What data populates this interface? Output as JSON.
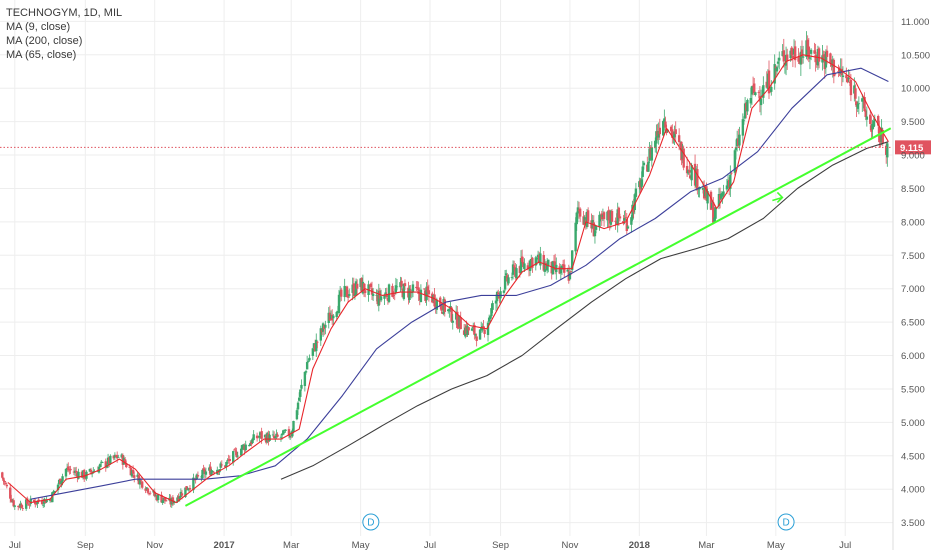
{
  "legend": {
    "symbol_line": "TECHNOGYM, 1D, MIL",
    "ma1": "MA (9, close)",
    "ma2": "MA (200, close)",
    "ma3": "MA (65, close)"
  },
  "current_price": "9.115",
  "event_marker": "D",
  "chart_data": {
    "type": "candlestick",
    "title": "TECHNOGYM, 1D, MIL",
    "x_ticks": [
      "Jul",
      "Sep",
      "Nov",
      "2017",
      "Mar",
      "May",
      "Jul",
      "Sep",
      "Nov",
      "2018",
      "Mar",
      "May",
      "Jul"
    ],
    "y_ticks": [
      "3.500",
      "4.000",
      "4.500",
      "5.000",
      "5.500",
      "6.000",
      "6.500",
      "7.000",
      "7.500",
      "8.000",
      "8.500",
      "9.000",
      "9.500",
      "10.000",
      "10.500",
      "11.000"
    ],
    "ylim": [
      3.3,
      11.2
    ],
    "x_range": [
      "2016-06-18",
      "2018-08-12"
    ],
    "grid": true,
    "last_price": 9.115,
    "close_path": [
      [
        "2016-06-18",
        4.25
      ],
      [
        "2016-07-01",
        3.75
      ],
      [
        "2016-07-15",
        3.8
      ],
      [
        "2016-08-01",
        3.85
      ],
      [
        "2016-08-15",
        4.3
      ],
      [
        "2016-09-01",
        4.2
      ],
      [
        "2016-09-15",
        4.35
      ],
      [
        "2016-10-01",
        4.5
      ],
      [
        "2016-10-15",
        4.2
      ],
      [
        "2016-11-01",
        3.9
      ],
      [
        "2016-11-15",
        3.8
      ],
      [
        "2016-12-01",
        4.05
      ],
      [
        "2016-12-15",
        4.25
      ],
      [
        "2017-01-01",
        4.35
      ],
      [
        "2017-01-15",
        4.6
      ],
      [
        "2017-02-01",
        4.8
      ],
      [
        "2017-02-15",
        4.75
      ],
      [
        "2017-03-01",
        4.85
      ],
      [
        "2017-03-15",
        5.9
      ],
      [
        "2017-04-01",
        6.5
      ],
      [
        "2017-04-15",
        6.9
      ],
      [
        "2017-05-01",
        7.05
      ],
      [
        "2017-05-15",
        6.85
      ],
      [
        "2017-06-01",
        7.0
      ],
      [
        "2017-06-15",
        6.95
      ],
      [
        "2017-07-01",
        6.9
      ],
      [
        "2017-07-15",
        6.7
      ],
      [
        "2017-08-01",
        6.4
      ],
      [
        "2017-08-15",
        6.3
      ],
      [
        "2017-09-01",
        7.0
      ],
      [
        "2017-09-15",
        7.3
      ],
      [
        "2017-10-01",
        7.45
      ],
      [
        "2017-10-15",
        7.3
      ],
      [
        "2017-11-01",
        7.2
      ],
      [
        "2017-11-08",
        8.2
      ],
      [
        "2017-11-22",
        7.9
      ],
      [
        "2017-12-08",
        8.1
      ],
      [
        "2017-12-22",
        8.0
      ],
      [
        "2018-01-08",
        8.9
      ],
      [
        "2018-01-22",
        9.6
      ],
      [
        "2018-02-08",
        9.0
      ],
      [
        "2018-02-22",
        8.6
      ],
      [
        "2018-03-08",
        8.1
      ],
      [
        "2018-03-22",
        8.7
      ],
      [
        "2018-04-08",
        9.9
      ],
      [
        "2018-04-22",
        10.0
      ],
      [
        "2018-05-08",
        10.5
      ],
      [
        "2018-05-22",
        10.55
      ],
      [
        "2018-06-08",
        10.5
      ],
      [
        "2018-06-22",
        10.3
      ],
      [
        "2018-07-08",
        10.0
      ],
      [
        "2018-07-22",
        9.5
      ],
      [
        "2018-08-08",
        9.115
      ]
    ],
    "ma_9_path": [
      [
        "2016-06-25",
        4.1
      ],
      [
        "2016-07-15",
        3.8
      ],
      [
        "2016-08-01",
        3.85
      ],
      [
        "2016-08-15",
        4.15
      ],
      [
        "2016-09-01",
        4.2
      ],
      [
        "2016-09-15",
        4.3
      ],
      [
        "2016-10-01",
        4.45
      ],
      [
        "2016-10-15",
        4.3
      ],
      [
        "2016-11-01",
        3.95
      ],
      [
        "2016-11-20",
        3.8
      ],
      [
        "2016-12-05",
        4.0
      ],
      [
        "2016-12-20",
        4.2
      ],
      [
        "2017-01-05",
        4.35
      ],
      [
        "2017-01-20",
        4.55
      ],
      [
        "2017-02-05",
        4.75
      ],
      [
        "2017-02-20",
        4.75
      ],
      [
        "2017-03-08",
        4.9
      ],
      [
        "2017-03-20",
        5.8
      ],
      [
        "2017-04-05",
        6.4
      ],
      [
        "2017-04-20",
        6.8
      ],
      [
        "2017-05-05",
        7.0
      ],
      [
        "2017-05-20",
        6.9
      ],
      [
        "2017-06-05",
        6.95
      ],
      [
        "2017-06-20",
        6.95
      ],
      [
        "2017-07-05",
        6.85
      ],
      [
        "2017-07-20",
        6.7
      ],
      [
        "2017-08-05",
        6.45
      ],
      [
        "2017-08-20",
        6.4
      ],
      [
        "2017-09-05",
        6.9
      ],
      [
        "2017-09-20",
        7.25
      ],
      [
        "2017-10-05",
        7.4
      ],
      [
        "2017-10-20",
        7.3
      ],
      [
        "2017-11-03",
        7.3
      ],
      [
        "2017-11-15",
        8.0
      ],
      [
        "2017-12-01",
        7.9
      ],
      [
        "2017-12-20",
        8.0
      ],
      [
        "2018-01-10",
        8.7
      ],
      [
        "2018-01-25",
        9.4
      ],
      [
        "2018-02-10",
        9.0
      ],
      [
        "2018-02-25",
        8.6
      ],
      [
        "2018-03-10",
        8.2
      ],
      [
        "2018-03-25",
        8.6
      ],
      [
        "2018-04-10",
        9.7
      ],
      [
        "2018-04-25",
        10.0
      ],
      [
        "2018-05-10",
        10.4
      ],
      [
        "2018-05-25",
        10.5
      ],
      [
        "2018-06-10",
        10.45
      ],
      [
        "2018-06-25",
        10.3
      ],
      [
        "2018-07-10",
        10.1
      ],
      [
        "2018-07-25",
        9.6
      ],
      [
        "2018-08-08",
        9.2
      ]
    ],
    "ma_65_path": [
      [
        "2016-07-15",
        3.85
      ],
      [
        "2016-08-15",
        3.95
      ],
      [
        "2016-09-15",
        4.05
      ],
      [
        "2016-10-15",
        4.15
      ],
      [
        "2016-11-15",
        4.15
      ],
      [
        "2016-12-15",
        4.15
      ],
      [
        "2017-01-15",
        4.2
      ],
      [
        "2017-02-15",
        4.35
      ],
      [
        "2017-03-15",
        4.75
      ],
      [
        "2017-04-15",
        5.4
      ],
      [
        "2017-05-15",
        6.1
      ],
      [
        "2017-06-15",
        6.5
      ],
      [
        "2017-07-15",
        6.8
      ],
      [
        "2017-08-15",
        6.9
      ],
      [
        "2017-09-15",
        6.9
      ],
      [
        "2017-10-15",
        7.05
      ],
      [
        "2017-11-15",
        7.35
      ],
      [
        "2017-12-15",
        7.75
      ],
      [
        "2018-01-15",
        8.05
      ],
      [
        "2018-02-15",
        8.45
      ],
      [
        "2018-03-15",
        8.65
      ],
      [
        "2018-04-15",
        9.05
      ],
      [
        "2018-05-15",
        9.7
      ],
      [
        "2018-06-15",
        10.2
      ],
      [
        "2018-07-15",
        10.3
      ],
      [
        "2018-08-08",
        10.1
      ]
    ],
    "ma_200_path": [
      [
        "2017-02-20",
        4.15
      ],
      [
        "2017-03-20",
        4.35
      ],
      [
        "2017-04-20",
        4.65
      ],
      [
        "2017-05-20",
        4.95
      ],
      [
        "2017-06-20",
        5.25
      ],
      [
        "2017-07-20",
        5.5
      ],
      [
        "2017-08-20",
        5.7
      ],
      [
        "2017-09-20",
        6.0
      ],
      [
        "2017-10-20",
        6.4
      ],
      [
        "2017-11-20",
        6.8
      ],
      [
        "2017-12-20",
        7.15
      ],
      [
        "2018-01-20",
        7.45
      ],
      [
        "2018-02-20",
        7.6
      ],
      [
        "2018-03-20",
        7.75
      ],
      [
        "2018-04-20",
        8.05
      ],
      [
        "2018-05-20",
        8.5
      ],
      [
        "2018-06-20",
        8.85
      ],
      [
        "2018-07-20",
        9.1
      ],
      [
        "2018-08-08",
        9.2
      ]
    ],
    "trendline": {
      "start": [
        "2016-11-28",
        3.75
      ],
      "end": [
        "2018-08-10",
        9.4
      ],
      "color": "#44ff2e"
    },
    "arrow_marker": [
      "2018-05-05",
      8.35
    ],
    "dividend_markers": [
      "2017-05-10",
      "2018-05-10"
    ],
    "colors": {
      "up": "#3aa86c",
      "down": "#e0535f",
      "ma9": "#e8262b",
      "ma65": "#3c3f9a",
      "ma200": "#3d3d3d",
      "price_line": "#e0535f",
      "grid": "#eeeeee"
    }
  }
}
